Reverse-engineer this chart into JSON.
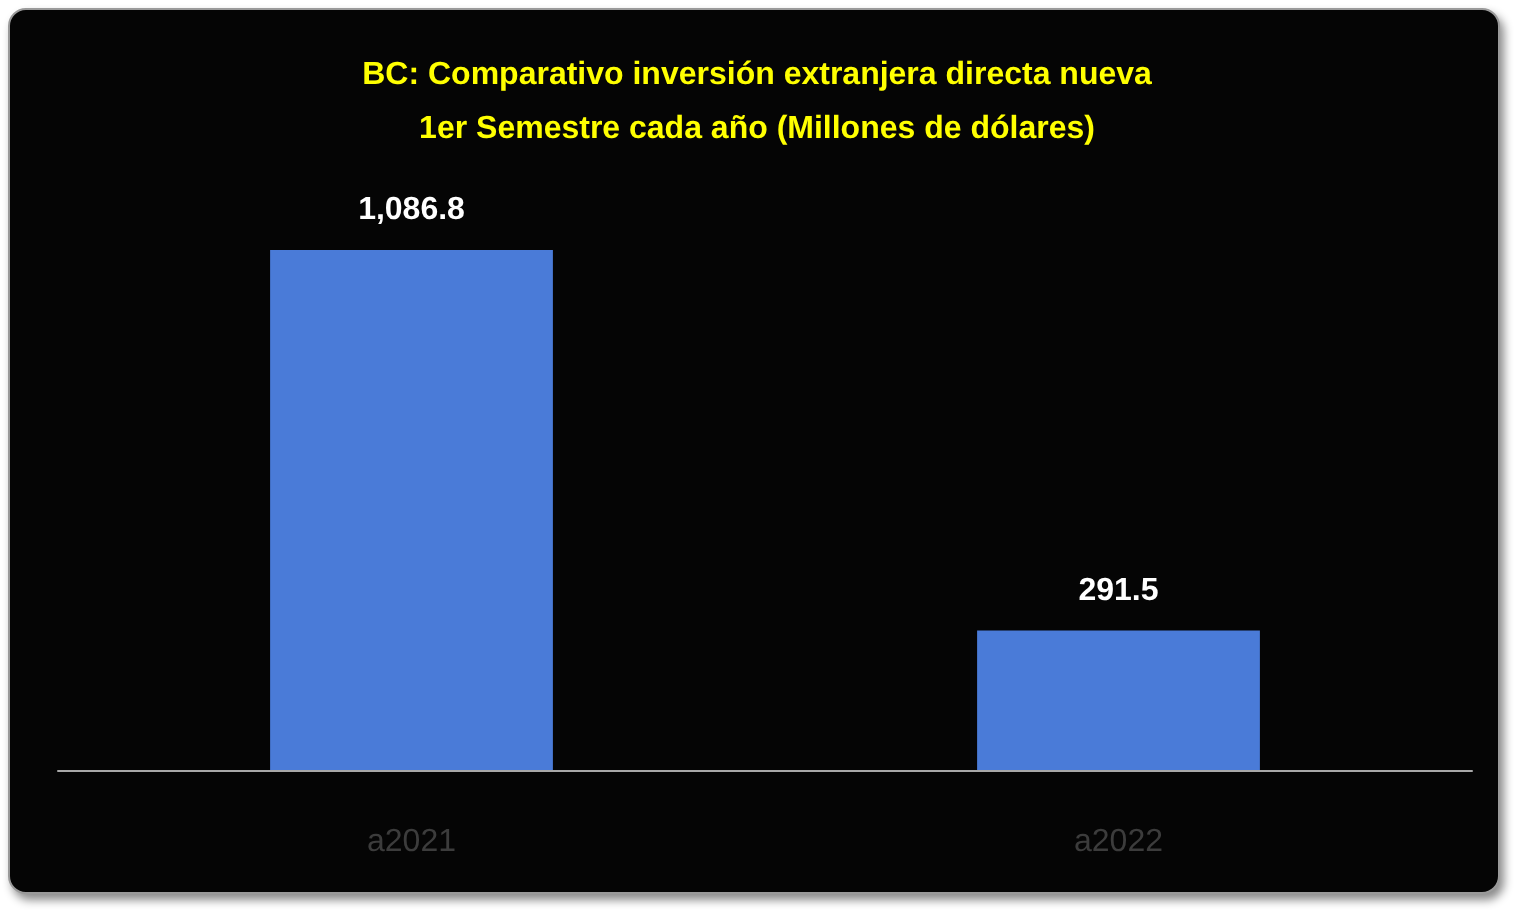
{
  "chart_data": {
    "type": "bar",
    "title": "BC: Comparativo inversión extranjera directa nueva\n1er Semestre cada año (Millones de dólares)",
    "categories": [
      "a2021",
      "a2022"
    ],
    "values": [
      1086.8,
      291.5
    ],
    "value_labels": [
      "1,086.8",
      "291.5"
    ],
    "color": "#4a7bd8"
  }
}
